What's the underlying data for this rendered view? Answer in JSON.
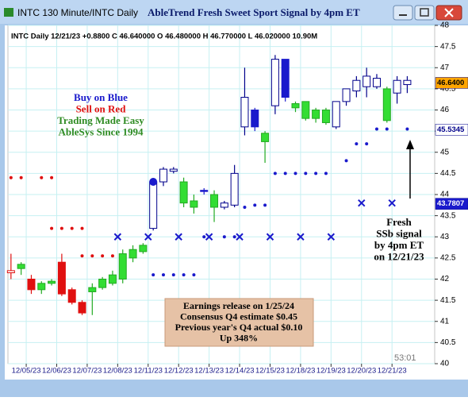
{
  "chart_data": {
    "type": "candlestick",
    "window_title": "INTC 130 Minute/INTC  Daily",
    "title": "AbleTrend Fresh Sweet Sport Signal by 4pm ET",
    "info": "INTC  Daily 12/21/23 +0.8800 C 46.640000 O 46.480000 H 46.770000 L 46.020000 10.90M",
    "legend_text": [
      {
        "text": "Buy on Blue",
        "color": "#1a1acc"
      },
      {
        "text": "Sell on Red",
        "color": "#e01010"
      },
      {
        "text": "Trading Made Easy",
        "color": "#2e8b22"
      },
      {
        "text": "AbleSys Since 1994",
        "color": "#2e8b22"
      }
    ],
    "annotation": [
      "Earnings release on 1/25/24",
      "Consensus Q4 estimate $0.45",
      "Previous year's Q4 actual $0.10",
      "Up 348%"
    ],
    "signal_note": [
      "Fresh",
      "SSb signal",
      "by 4pm ET",
      "on 12/21/23"
    ],
    "timer": "53:01",
    "ylim": [
      40,
      48
    ],
    "yticks": [
      40,
      40.5,
      41,
      41.5,
      42,
      42.5,
      43,
      43.5,
      44,
      44.5,
      45,
      45.5,
      46,
      46.5,
      47,
      47.5,
      48
    ],
    "xlim": [
      -0.3,
      41.7
    ],
    "xticks": [
      {
        "value": 1.5,
        "label": "12/05/23"
      },
      {
        "value": 4.5,
        "label": "12/06/23"
      },
      {
        "value": 7.5,
        "label": "12/07/23"
      },
      {
        "value": 10.5,
        "label": "12/08/23"
      },
      {
        "value": 13.5,
        "label": "12/11/23"
      },
      {
        "value": 16.5,
        "label": "12/12/23"
      },
      {
        "value": 19.5,
        "label": "12/13/23"
      },
      {
        "value": 22.5,
        "label": "12/14/23"
      },
      {
        "value": 25.5,
        "label": "12/15/23"
      },
      {
        "value": 28.5,
        "label": "12/18/23"
      },
      {
        "value": 31.5,
        "label": "12/19/23"
      },
      {
        "value": 34.5,
        "label": "12/20/23"
      },
      {
        "value": 37.5,
        "label": "12/21/23"
      }
    ],
    "grid": true,
    "candles": [
      {
        "o": 42.2,
        "h": 42.6,
        "l": 42.0,
        "c": 42.15,
        "style": "red-hollow"
      },
      {
        "o": 42.25,
        "h": 42.4,
        "l": 42.1,
        "c": 42.35,
        "style": "green"
      },
      {
        "o": 42.0,
        "h": 42.1,
        "l": 41.65,
        "c": 41.75,
        "style": "red"
      },
      {
        "o": 41.75,
        "h": 41.95,
        "l": 41.65,
        "c": 41.9,
        "style": "green"
      },
      {
        "o": 41.9,
        "h": 42.0,
        "l": 41.85,
        "c": 41.95,
        "style": "green"
      },
      {
        "o": 42.4,
        "h": 42.6,
        "l": 41.6,
        "c": 41.65,
        "style": "red"
      },
      {
        "o": 41.75,
        "h": 41.8,
        "l": 41.4,
        "c": 41.45,
        "style": "red"
      },
      {
        "o": 41.45,
        "h": 41.5,
        "l": 41.15,
        "c": 41.2,
        "style": "red"
      },
      {
        "o": 41.7,
        "h": 41.9,
        "l": 41.15,
        "c": 41.8,
        "style": "green"
      },
      {
        "o": 41.8,
        "h": 42.05,
        "l": 41.75,
        "c": 42.0,
        "style": "green"
      },
      {
        "o": 41.9,
        "h": 42.2,
        "l": 41.85,
        "c": 42.1,
        "style": "green"
      },
      {
        "o": 42.0,
        "h": 42.7,
        "l": 41.9,
        "c": 42.6,
        "style": "green"
      },
      {
        "o": 42.5,
        "h": 42.8,
        "l": 42.4,
        "c": 42.7,
        "style": "green"
      },
      {
        "o": 42.65,
        "h": 42.85,
        "l": 42.6,
        "c": 42.8,
        "style": "green"
      },
      {
        "o": 43.2,
        "h": 44.3,
        "l": 43.15,
        "c": 44.3,
        "style": "white"
      },
      {
        "o": 44.3,
        "h": 44.65,
        "l": 44.2,
        "c": 44.6,
        "style": "white"
      },
      {
        "o": 44.55,
        "h": 44.65,
        "l": 44.5,
        "c": 44.6,
        "style": "white"
      },
      {
        "o": 43.8,
        "h": 44.4,
        "l": 43.7,
        "c": 44.3,
        "style": "green"
      },
      {
        "o": 43.7,
        "h": 44.0,
        "l": 43.55,
        "c": 43.85,
        "style": "green"
      },
      {
        "o": 44.1,
        "h": 44.15,
        "l": 44.0,
        "c": 44.1,
        "style": "blue"
      },
      {
        "o": 43.7,
        "h": 44.1,
        "l": 43.35,
        "c": 44.0,
        "style": "green"
      },
      {
        "o": 43.7,
        "h": 43.85,
        "l": 43.65,
        "c": 43.8,
        "style": "white"
      },
      {
        "o": 43.75,
        "h": 44.7,
        "l": 43.7,
        "c": 44.5,
        "style": "white"
      },
      {
        "o": 45.6,
        "h": 47.0,
        "l": 45.4,
        "c": 46.3,
        "style": "white"
      },
      {
        "o": 46.0,
        "h": 46.05,
        "l": 45.5,
        "c": 45.6,
        "style": "blue"
      },
      {
        "o": 45.25,
        "h": 45.5,
        "l": 44.75,
        "c": 45.45,
        "style": "green"
      },
      {
        "o": 46.1,
        "h": 47.3,
        "l": 45.9,
        "c": 47.2,
        "style": "white"
      },
      {
        "o": 47.2,
        "h": 47.2,
        "l": 46.2,
        "c": 46.3,
        "style": "blue"
      },
      {
        "o": 46.05,
        "h": 46.2,
        "l": 45.95,
        "c": 46.15,
        "style": "green"
      },
      {
        "o": 45.8,
        "h": 46.2,
        "l": 45.75,
        "c": 46.2,
        "style": "green"
      },
      {
        "o": 45.8,
        "h": 46.05,
        "l": 45.7,
        "c": 46.0,
        "style": "green"
      },
      {
        "o": 45.7,
        "h": 46.05,
        "l": 45.65,
        "c": 46.0,
        "style": "green"
      },
      {
        "o": 45.6,
        "h": 46.2,
        "l": 45.55,
        "c": 46.2,
        "style": "white"
      },
      {
        "o": 46.2,
        "h": 46.5,
        "l": 46.1,
        "c": 46.5,
        "style": "white"
      },
      {
        "o": 46.45,
        "h": 46.8,
        "l": 46.3,
        "c": 46.7,
        "style": "white"
      },
      {
        "o": 46.55,
        "h": 47.0,
        "l": 46.3,
        "c": 46.8,
        "style": "white"
      },
      {
        "o": 46.55,
        "h": 46.85,
        "l": 46.5,
        "c": 46.75,
        "style": "white"
      },
      {
        "o": 46.5,
        "h": 46.55,
        "l": 45.7,
        "c": 45.75,
        "style": "green"
      },
      {
        "o": 46.4,
        "h": 46.8,
        "l": 46.15,
        "c": 46.7,
        "style": "white"
      },
      {
        "o": 46.6,
        "h": 46.8,
        "l": 46.4,
        "c": 46.7,
        "style": "white"
      }
    ],
    "markers": [
      {
        "shape": "dot",
        "color": "#e01010",
        "size": 2,
        "x": [
          0,
          1,
          3,
          4,
          4,
          5,
          6,
          7,
          7,
          8,
          9,
          10
        ],
        "y": [
          44.4,
          44.4,
          44.4,
          44.4,
          43.2,
          43.2,
          43.2,
          43.2,
          42.55,
          42.55,
          42.55,
          42.55
        ]
      },
      {
        "shape": "dot",
        "color": "#1a1acc",
        "size": 2,
        "x": [
          14,
          15,
          16,
          17,
          18,
          19,
          21,
          22,
          23,
          24,
          25,
          26,
          27,
          28,
          29,
          30,
          31,
          33,
          34,
          35,
          36,
          37,
          39
        ],
        "y": [
          42.1,
          42.1,
          42.1,
          42.1,
          42.1,
          43.0,
          43.0,
          43.0,
          43.7,
          43.75,
          43.75,
          44.5,
          44.5,
          44.5,
          44.5,
          44.5,
          44.5,
          44.8,
          45.2,
          45.2,
          45.55,
          45.55,
          45.55
        ]
      },
      {
        "shape": "dot",
        "color": "#1a1acc",
        "size": 5,
        "x": [
          14
        ],
        "y": [
          44.3
        ]
      },
      {
        "shape": "x",
        "color": "#1a1acc",
        "size": 4,
        "x": [
          10.5,
          13.5,
          16.5,
          19.5,
          22.5,
          25.5,
          28.5,
          31.5,
          34.5,
          37.5
        ],
        "y": [
          43.0,
          43.0,
          43.0,
          43.0,
          43.0,
          43.0,
          43.0,
          43.0,
          43.8,
          43.8
        ]
      }
    ],
    "price_labels": [
      {
        "value": 46.64,
        "label": "46.6400",
        "color": "#ffa500",
        "text_color": "#000000"
      },
      {
        "value": 45.5345,
        "label": "45.5345",
        "color": "#ffffff",
        "text_color": "#00008b"
      },
      {
        "value": 43.7807,
        "label": "43.7807",
        "color": "#1a1acc",
        "text_color": "#ffffff"
      }
    ]
  }
}
